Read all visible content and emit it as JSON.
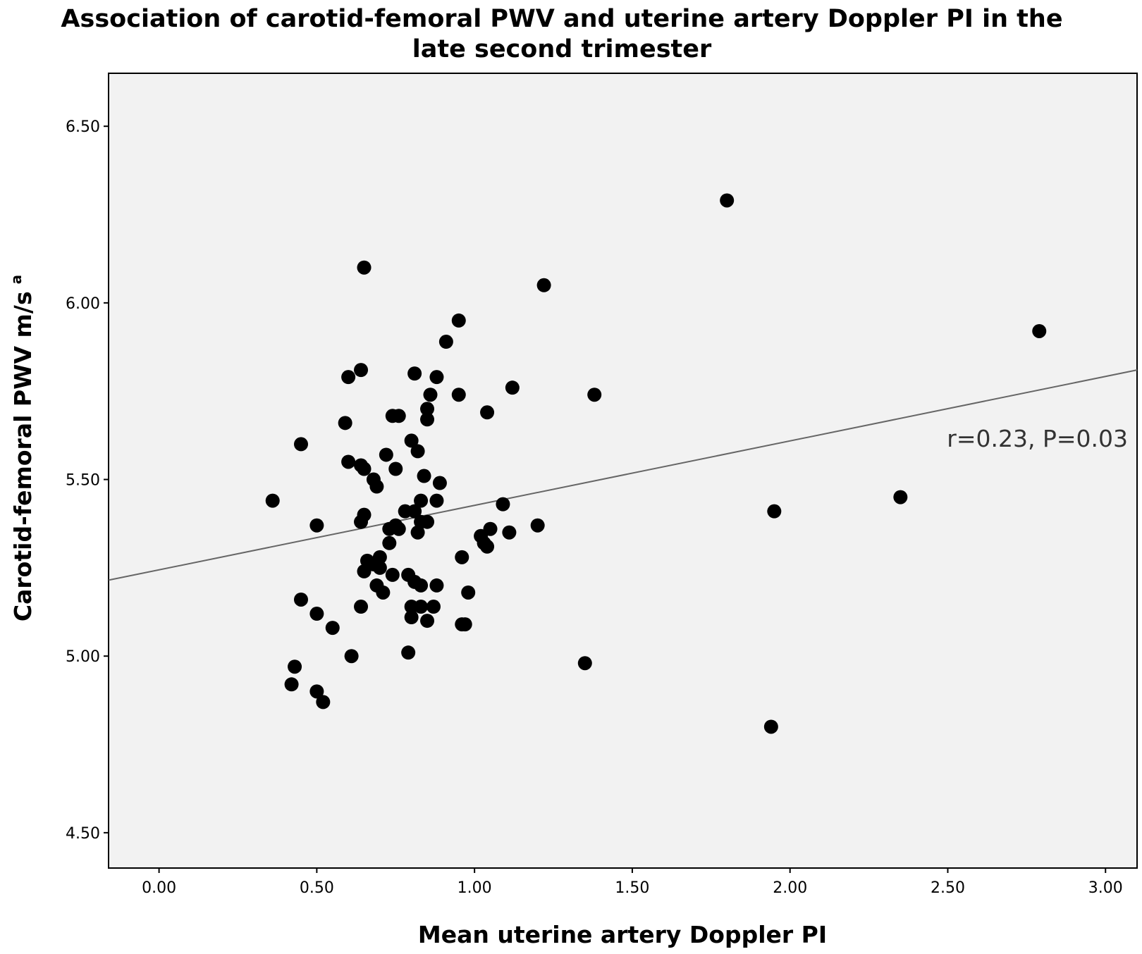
{
  "chart_data": {
    "type": "scatter",
    "title_line1": "Association of carotid-femoral PWV and uterine artery Doppler PI in the",
    "title_line2": "late second trimester",
    "xlabel": "Mean uterine artery Doppler PI",
    "ylabel": "Carotid-femoral PWV m/s",
    "ylabel_superscript": "a",
    "xlim": [
      -0.16,
      3.1
    ],
    "ylim": [
      4.4,
      6.65
    ],
    "x_ticks": [
      "0.00",
      "0.50",
      "1.00",
      "1.50",
      "2.00",
      "2.50",
      "3.00"
    ],
    "y_ticks": [
      "4.50",
      "5.00",
      "5.50",
      "6.00",
      "6.50"
    ],
    "grid": false,
    "colors": {
      "plot_background": "#f2f2f2",
      "points": "#000000",
      "fit_line": "#666666"
    },
    "fit_line": {
      "x": [
        -0.16,
        3.1
      ],
      "y": [
        5.215,
        5.81
      ]
    },
    "annotation": "r=0.23, P=0.03",
    "points": [
      {
        "x": 1.8,
        "y": 6.29
      },
      {
        "x": 0.65,
        "y": 6.1
      },
      {
        "x": 1.22,
        "y": 6.05
      },
      {
        "x": 0.95,
        "y": 5.95
      },
      {
        "x": 2.79,
        "y": 5.92
      },
      {
        "x": 0.91,
        "y": 5.89
      },
      {
        "x": 0.64,
        "y": 5.81
      },
      {
        "x": 0.81,
        "y": 5.8
      },
      {
        "x": 0.6,
        "y": 5.79
      },
      {
        "x": 0.88,
        "y": 5.79
      },
      {
        "x": 1.12,
        "y": 5.76
      },
      {
        "x": 0.86,
        "y": 5.74
      },
      {
        "x": 0.95,
        "y": 5.74
      },
      {
        "x": 1.38,
        "y": 5.74
      },
      {
        "x": 0.85,
        "y": 5.7
      },
      {
        "x": 1.04,
        "y": 5.69
      },
      {
        "x": 0.74,
        "y": 5.68
      },
      {
        "x": 0.76,
        "y": 5.68
      },
      {
        "x": 0.85,
        "y": 5.67
      },
      {
        "x": 0.59,
        "y": 5.66
      },
      {
        "x": 0.8,
        "y": 5.61
      },
      {
        "x": 0.45,
        "y": 5.6
      },
      {
        "x": 0.82,
        "y": 5.58
      },
      {
        "x": 0.72,
        "y": 5.57
      },
      {
        "x": 0.6,
        "y": 5.55
      },
      {
        "x": 0.64,
        "y": 5.54
      },
      {
        "x": 0.65,
        "y": 5.53
      },
      {
        "x": 0.75,
        "y": 5.53
      },
      {
        "x": 0.84,
        "y": 5.51
      },
      {
        "x": 0.68,
        "y": 5.5
      },
      {
        "x": 0.69,
        "y": 5.48
      },
      {
        "x": 0.89,
        "y": 5.49
      },
      {
        "x": 0.36,
        "y": 5.44
      },
      {
        "x": 0.83,
        "y": 5.44
      },
      {
        "x": 0.88,
        "y": 5.44
      },
      {
        "x": 1.09,
        "y": 5.43
      },
      {
        "x": 2.35,
        "y": 5.45
      },
      {
        "x": 0.78,
        "y": 5.41
      },
      {
        "x": 0.81,
        "y": 5.41
      },
      {
        "x": 1.95,
        "y": 5.41
      },
      {
        "x": 0.65,
        "y": 5.4
      },
      {
        "x": 0.64,
        "y": 5.38
      },
      {
        "x": 0.83,
        "y": 5.38
      },
      {
        "x": 0.85,
        "y": 5.38
      },
      {
        "x": 0.5,
        "y": 5.37
      },
      {
        "x": 0.75,
        "y": 5.37
      },
      {
        "x": 1.2,
        "y": 5.37
      },
      {
        "x": 0.73,
        "y": 5.36
      },
      {
        "x": 0.76,
        "y": 5.36
      },
      {
        "x": 1.05,
        "y": 5.36
      },
      {
        "x": 0.82,
        "y": 5.35
      },
      {
        "x": 1.02,
        "y": 5.34
      },
      {
        "x": 1.11,
        "y": 5.35
      },
      {
        "x": 0.73,
        "y": 5.32
      },
      {
        "x": 1.03,
        "y": 5.32
      },
      {
        "x": 1.04,
        "y": 5.31
      },
      {
        "x": 0.7,
        "y": 5.28
      },
      {
        "x": 0.96,
        "y": 5.28
      },
      {
        "x": 0.66,
        "y": 5.27
      },
      {
        "x": 0.68,
        "y": 5.26
      },
      {
        "x": 0.7,
        "y": 5.25
      },
      {
        "x": 0.65,
        "y": 5.24
      },
      {
        "x": 0.74,
        "y": 5.23
      },
      {
        "x": 0.79,
        "y": 5.23
      },
      {
        "x": 0.81,
        "y": 5.21
      },
      {
        "x": 0.69,
        "y": 5.2
      },
      {
        "x": 0.83,
        "y": 5.2
      },
      {
        "x": 0.88,
        "y": 5.2
      },
      {
        "x": 0.71,
        "y": 5.18
      },
      {
        "x": 0.98,
        "y": 5.18
      },
      {
        "x": 0.45,
        "y": 5.16
      },
      {
        "x": 0.64,
        "y": 5.14
      },
      {
        "x": 0.8,
        "y": 5.14
      },
      {
        "x": 0.83,
        "y": 5.14
      },
      {
        "x": 0.87,
        "y": 5.14
      },
      {
        "x": 0.5,
        "y": 5.12
      },
      {
        "x": 0.8,
        "y": 5.11
      },
      {
        "x": 0.85,
        "y": 5.1
      },
      {
        "x": 0.96,
        "y": 5.09
      },
      {
        "x": 0.97,
        "y": 5.09
      },
      {
        "x": 0.55,
        "y": 5.08
      },
      {
        "x": 0.79,
        "y": 5.01
      },
      {
        "x": 0.61,
        "y": 5.0
      },
      {
        "x": 1.35,
        "y": 4.98
      },
      {
        "x": 0.43,
        "y": 4.97
      },
      {
        "x": 0.42,
        "y": 4.92
      },
      {
        "x": 0.5,
        "y": 4.9
      },
      {
        "x": 0.52,
        "y": 4.87
      },
      {
        "x": 1.94,
        "y": 4.8
      }
    ]
  }
}
